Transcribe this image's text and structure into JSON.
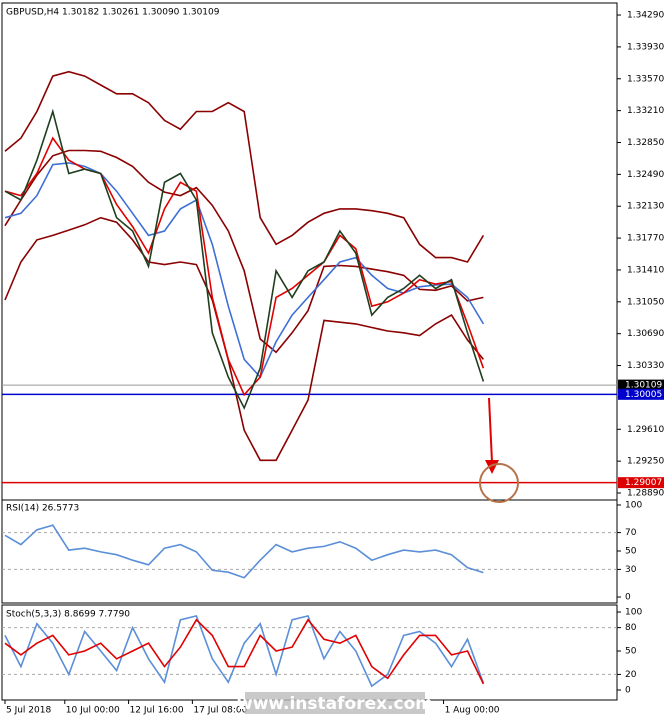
{
  "chart_data": [
    {
      "type": "line",
      "title": "GBPUSD,H4 1.30182 1.30261 1.30090 1.30109",
      "x": [
        0,
        4,
        8,
        12,
        16,
        20,
        24,
        28,
        32,
        36,
        40,
        44,
        48,
        52,
        56,
        60,
        64,
        68,
        72,
        76,
        80,
        84,
        88,
        92,
        96,
        100,
        104,
        108,
        112,
        116,
        120
      ],
      "xlim": [
        -0.75,
        153.5
      ],
      "ylim": [
        1.28811,
        1.34426
      ],
      "yticks": [
        {
          "value": 1.3429,
          "label": "1.34290"
        },
        {
          "value": 1.3393,
          "label": "1.33930"
        },
        {
          "value": 1.3357,
          "label": "1.33570"
        },
        {
          "value": 1.3321,
          "label": "1.33210"
        },
        {
          "value": 1.3285,
          "label": "1.32850"
        },
        {
          "value": 1.3249,
          "label": "1.32490"
        },
        {
          "value": 1.3213,
          "label": "1.32130"
        },
        {
          "value": 1.3177,
          "label": "1.31770"
        },
        {
          "value": 1.3141,
          "label": "1.31410"
        },
        {
          "value": 1.3105,
          "label": "1.31050"
        },
        {
          "value": 1.3069,
          "label": "1.30690"
        },
        {
          "value": 1.3033,
          "label": "1.30330"
        },
        {
          "value": 1.2961,
          "label": "1.29610"
        },
        {
          "value": 1.2925,
          "label": "1.29250"
        },
        {
          "value": 1.2889,
          "label": "1.28890"
        }
      ],
      "series": [
        {
          "color": "#8b0000",
          "values": [
            1.3275,
            1.329,
            1.332,
            1.336,
            1.3365,
            1.336,
            1.335,
            1.334,
            1.334,
            1.333,
            1.331,
            1.33,
            1.332,
            1.332,
            1.333,
            1.332,
            1.32,
            1.317,
            1.318,
            1.3195,
            1.3205,
            1.321,
            1.321,
            1.3208,
            1.3205,
            1.32,
            1.317,
            1.3155,
            1.3155,
            1.315,
            1.318
          ]
        },
        {
          "color": "#8b0000",
          "values": [
            1.3191,
            1.322,
            1.3248,
            1.327,
            1.3276,
            1.3276,
            1.3275,
            1.3268,
            1.3258,
            1.324,
            1.3229,
            1.3225,
            1.3234,
            1.3214,
            1.3185,
            1.314,
            1.3063,
            1.3048,
            1.307,
            1.3095,
            1.3145,
            1.3146,
            1.3145,
            1.3142,
            1.3139,
            1.3135,
            1.3119,
            1.3118,
            1.3123,
            1.3106,
            1.311
          ]
        },
        {
          "color": "#8b0000",
          "values": [
            1.3107,
            1.315,
            1.3175,
            1.318,
            1.3186,
            1.3192,
            1.32,
            1.3195,
            1.3175,
            1.315,
            1.3147,
            1.315,
            1.3147,
            1.3107,
            1.3039,
            1.296,
            1.2926,
            1.2926,
            1.296,
            1.2994,
            1.3084,
            1.3082,
            1.308,
            1.3076,
            1.3072,
            1.307,
            1.3067,
            1.308,
            1.309,
            1.3062,
            1.304
          ]
        },
        {
          "color": "#3d6fd6",
          "values": [
            1.32,
            1.3205,
            1.3225,
            1.326,
            1.3262,
            1.3258,
            1.325,
            1.323,
            1.3205,
            1.318,
            1.3185,
            1.321,
            1.322,
            1.317,
            1.31,
            1.304,
            1.302,
            1.306,
            1.309,
            1.311,
            1.313,
            1.315,
            1.3155,
            1.3135,
            1.312,
            1.3115,
            1.3122,
            1.3124,
            1.3125,
            1.311,
            1.308
          ]
        },
        {
          "color": "#e00000",
          "values": [
            1.323,
            1.3225,
            1.325,
            1.329,
            1.3265,
            1.3255,
            1.325,
            1.3215,
            1.319,
            1.316,
            1.321,
            1.324,
            1.323,
            1.311,
            1.304,
            1.3,
            1.302,
            1.311,
            1.312,
            1.3135,
            1.315,
            1.318,
            1.3165,
            1.31,
            1.3105,
            1.3115,
            1.313,
            1.3125,
            1.3128,
            1.308,
            1.303
          ]
        },
        {
          "color": "#1f3f1f",
          "values": [
            1.323,
            1.322,
            1.3265,
            1.332,
            1.325,
            1.3255,
            1.325,
            1.32,
            1.3185,
            1.3145,
            1.324,
            1.325,
            1.322,
            1.307,
            1.302,
            1.2985,
            1.303,
            1.314,
            1.311,
            1.314,
            1.315,
            1.3185,
            1.316,
            1.309,
            1.311,
            1.312,
            1.3135,
            1.312,
            1.313,
            1.307,
            1.3015
          ]
        }
      ],
      "price_lines": [
        {
          "value": 1.30109,
          "color": "#000000"
        },
        {
          "value": 1.30005,
          "color": "#0000cc"
        },
        {
          "value": 1.29007,
          "color": "#dd0000"
        }
      ]
    },
    {
      "type": "line",
      "title": "RSI(14) 26.5773",
      "x": [
        0,
        4,
        8,
        12,
        16,
        20,
        24,
        28,
        32,
        36,
        40,
        44,
        48,
        52,
        56,
        60,
        64,
        68,
        72,
        76,
        80,
        84,
        88,
        92,
        96,
        100,
        104,
        108,
        112,
        116,
        120
      ],
      "xlim": [
        -0.75,
        153.5
      ],
      "ylim": [
        -6.5,
        105.4
      ],
      "yticks": [
        0,
        30,
        50,
        70,
        100
      ],
      "levels": [
        70,
        30
      ],
      "series": [
        {
          "color": "#5b8fd8",
          "values": [
            67,
            57,
            73,
            78,
            51,
            53,
            49,
            46,
            40,
            35,
            53,
            57,
            49,
            29,
            27,
            21,
            40,
            57,
            49,
            53,
            55,
            60,
            53,
            40,
            46,
            51,
            49,
            51,
            46,
            32,
            26.5773
          ]
        }
      ]
    },
    {
      "type": "line",
      "title": "Stoch(5,3,3) 8.8699 7.7790",
      "x": [
        0,
        4,
        8,
        12,
        16,
        20,
        24,
        28,
        32,
        36,
        40,
        44,
        48,
        52,
        56,
        60,
        64,
        68,
        72,
        76,
        80,
        84,
        88,
        92,
        96,
        100,
        104,
        108,
        112,
        116,
        120
      ],
      "xlim": [
        -0.75,
        153.5
      ],
      "ylim": [
        -12.8,
        109
      ],
      "yticks": [
        0,
        20,
        50,
        80,
        100
      ],
      "levels": [
        80,
        20
      ],
      "xticks": [
        {
          "value": 0,
          "label": "5 Jul 2018"
        },
        {
          "value": 15,
          "label": "10 Jul 00:00"
        },
        {
          "value": 31,
          "label": "12 Jul 16:00"
        },
        {
          "value": 47,
          "label": "17 Jul 08:00"
        },
        {
          "value": 110,
          "label": "1 Aug 00:00"
        }
      ],
      "series": [
        {
          "color": "#5b8fd8",
          "values": [
            70,
            30,
            85,
            60,
            20,
            75,
            50,
            25,
            80,
            40,
            10,
            90,
            95,
            40,
            10,
            60,
            85,
            20,
            90,
            95,
            40,
            75,
            50,
            5,
            20,
            70,
            75,
            60,
            30,
            65,
            8.8699
          ]
        },
        {
          "color": "#e00000",
          "values": [
            60,
            45,
            60,
            70,
            45,
            50,
            60,
            40,
            50,
            60,
            30,
            55,
            90,
            70,
            30,
            30,
            70,
            50,
            55,
            90,
            65,
            60,
            70,
            30,
            15,
            45,
            70,
            70,
            45,
            50,
            7.779
          ]
        }
      ]
    }
  ],
  "watermark": "www.instaforex.com"
}
